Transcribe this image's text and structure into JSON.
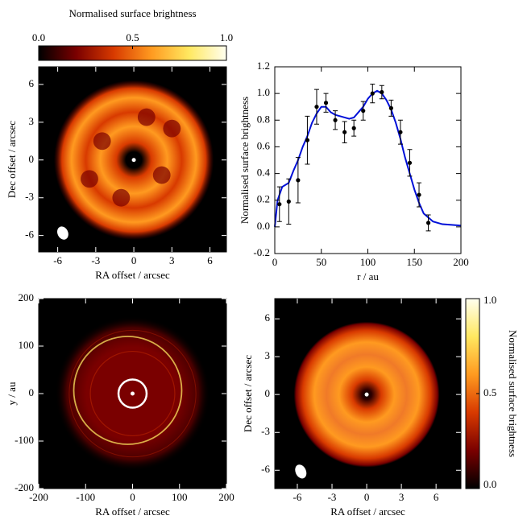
{
  "chart_data": [
    {
      "type": "image",
      "x_label": "RA offset / arcsec",
      "y_label": "Dec offset / arcsec",
      "xlim": [
        -7.5,
        7.3
      ],
      "ylim": [
        -7.3,
        7.4
      ],
      "xticks": [
        -6,
        -3,
        0,
        3,
        6
      ],
      "yticks": [
        -6,
        -3,
        0,
        3,
        6
      ],
      "colormap": [
        "#000000",
        "#7a0000",
        "#d83a00",
        "#ff9a20",
        "#ffe860",
        "#fffff0"
      ],
      "colorbar": {
        "label": "Normalised surface brightness",
        "orientation": "horizontal",
        "lim": [
          0,
          1
        ],
        "ticks": [
          {
            "value": 0,
            "label": "0.0"
          },
          0.5,
          {
            "value": 1,
            "label": "1.0"
          }
        ]
      }
    },
    {
      "type": "line",
      "x_label": "r / au",
      "y_label": "Normalised surface brightness",
      "xlim": [
        0,
        200
      ],
      "ylim": [
        -0.2,
        1.2
      ],
      "xticks": [
        0,
        50,
        100,
        150,
        200
      ],
      "yticks": [
        -0.2,
        {
          "value": 0,
          "label": "0.0"
        },
        0.2,
        0.4,
        0.6,
        0.8,
        {
          "value": 1,
          "label": "1.0"
        },
        1.2
      ],
      "series": [
        {
          "type": "line",
          "color": "#0010d8",
          "x": [
            0,
            3,
            8,
            15,
            20,
            25,
            30,
            35,
            40,
            45,
            50,
            55,
            60,
            65,
            70,
            75,
            80,
            85,
            90,
            95,
            100,
            105,
            110,
            115,
            120,
            125,
            130,
            135,
            140,
            145,
            150,
            155,
            160,
            170,
            180,
            200
          ],
          "values": [
            0.0,
            0.2,
            0.3,
            0.33,
            0.42,
            0.5,
            0.6,
            0.68,
            0.78,
            0.85,
            0.9,
            0.9,
            0.86,
            0.84,
            0.83,
            0.82,
            0.81,
            0.82,
            0.86,
            0.9,
            0.96,
            1.0,
            1.02,
            1.0,
            0.95,
            0.88,
            0.78,
            0.66,
            0.52,
            0.4,
            0.28,
            0.18,
            0.1,
            0.04,
            0.02,
            0.01
          ]
        },
        {
          "type": "errorbar",
          "color": "#000000",
          "x": [
            5,
            15,
            25,
            35,
            45,
            55,
            65,
            75,
            85,
            95,
            105,
            115,
            125,
            135,
            145,
            155,
            165
          ],
          "values": [
            0.17,
            0.19,
            0.35,
            0.65,
            0.9,
            0.93,
            0.8,
            0.71,
            0.74,
            0.87,
            1.0,
            1.01,
            0.89,
            0.71,
            0.48,
            0.24,
            0.03
          ],
          "errors": [
            0.13,
            0.17,
            0.17,
            0.18,
            0.13,
            0.07,
            0.07,
            0.08,
            0.06,
            0.07,
            0.07,
            0.05,
            0.06,
            0.09,
            0.1,
            0.09,
            0.06
          ]
        }
      ]
    },
    {
      "type": "image",
      "x_label": "RA offset / arcsec",
      "y_label": "y / au",
      "xlim": [
        -200,
        200
      ],
      "ylim": [
        -200,
        200
      ],
      "xticks": [
        -200,
        -100,
        0,
        100,
        200
      ],
      "yticks": [
        -200,
        -100,
        0,
        100,
        200
      ],
      "colormap": [
        "#000000",
        "#7a0000",
        "#d83a00",
        "#ff9a20",
        "#ffe860",
        "#fffff0"
      ]
    },
    {
      "type": "image",
      "x_label": "RA offset / arcsec",
      "y_label": "Dec offset / arcsec",
      "xlim": [
        -7.95,
        8.15
      ],
      "ylim": [
        -7.45,
        7.6
      ],
      "xticks": [
        -6,
        -3,
        0,
        3,
        6
      ],
      "yticks": [
        -6,
        -3,
        0,
        3,
        6
      ],
      "colormap": [
        "#000000",
        "#7a0000",
        "#d83a00",
        "#ff9a20",
        "#ffe860",
        "#fffff0"
      ],
      "colorbar": {
        "label": "Normalised surface brightness",
        "orientation": "vertical",
        "lim": [
          0,
          1
        ],
        "ticks": [
          {
            "value": 0,
            "label": "0.0"
          },
          0.5,
          {
            "value": 1,
            "label": "1.0"
          }
        ]
      }
    }
  ]
}
